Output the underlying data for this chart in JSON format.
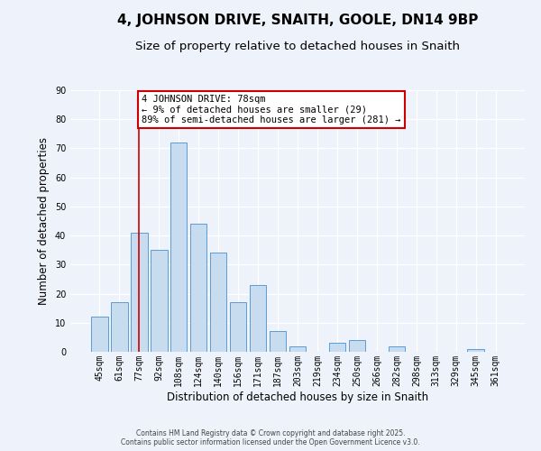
{
  "title": "4, JOHNSON DRIVE, SNAITH, GOOLE, DN14 9BP",
  "subtitle": "Size of property relative to detached houses in Snaith",
  "xlabel": "Distribution of detached houses by size in Snaith",
  "ylabel": "Number of detached properties",
  "categories": [
    "45sqm",
    "61sqm",
    "77sqm",
    "92sqm",
    "108sqm",
    "124sqm",
    "140sqm",
    "156sqm",
    "171sqm",
    "187sqm",
    "203sqm",
    "219sqm",
    "234sqm",
    "250sqm",
    "266sqm",
    "282sqm",
    "298sqm",
    "313sqm",
    "329sqm",
    "345sqm",
    "361sqm"
  ],
  "values": [
    12,
    17,
    41,
    35,
    72,
    44,
    34,
    17,
    23,
    7,
    2,
    0,
    3,
    4,
    0,
    2,
    0,
    0,
    0,
    1,
    0
  ],
  "bar_color": "#c8dcf0",
  "bar_edge_color": "#5b9bd5",
  "vline_x_index": 2,
  "vline_color": "#cc0000",
  "annotation_line1": "4 JOHNSON DRIVE: 78sqm",
  "annotation_line2": "← 9% of detached houses are smaller (29)",
  "annotation_line3": "89% of semi-detached houses are larger (281) →",
  "annotation_box_color": "#ffffff",
  "annotation_box_edge_color": "#cc0000",
  "ylim": [
    0,
    90
  ],
  "background_color": "#eef2fa",
  "footer_line1": "Contains HM Land Registry data © Crown copyright and database right 2025.",
  "footer_line2": "Contains public sector information licensed under the Open Government Licence v3.0.",
  "title_fontsize": 11,
  "subtitle_fontsize": 9.5,
  "tick_fontsize": 7,
  "ylabel_fontsize": 8.5,
  "xlabel_fontsize": 8.5,
  "annotation_fontsize": 7.5,
  "footer_fontsize": 5.5
}
